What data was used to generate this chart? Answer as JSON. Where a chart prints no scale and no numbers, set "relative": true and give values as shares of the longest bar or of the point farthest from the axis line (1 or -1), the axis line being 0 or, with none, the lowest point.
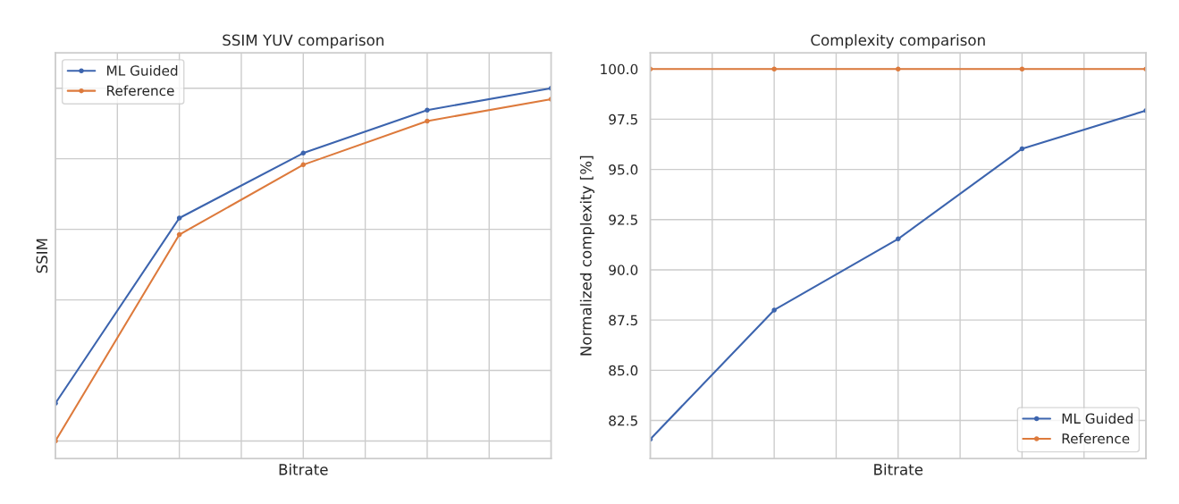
{
  "chart_data": [
    {
      "type": "line",
      "title": "SSIM YUV comparison",
      "xlabel": "Bitrate",
      "ylabel": "SSIM",
      "relative": true,
      "categories": [
        null,
        null,
        null,
        null,
        null
      ],
      "series": [
        {
          "name": "ML Guided",
          "color": "#3c64ae",
          "values": [
            0.107,
            0.632,
            0.816,
            0.938,
            1.0
          ]
        },
        {
          "name": "Reference",
          "color": "#dd7a3c",
          "values": [
            0.0,
            0.585,
            0.783,
            0.907,
            0.969
          ]
        }
      ],
      "marker": "circle",
      "line_style": "solid",
      "grid": true,
      "legend": "top left",
      "tick_labels": false
    },
    {
      "type": "line",
      "title": "Complexity comparison",
      "xlabel": "Bitrate",
      "ylabel": "Normalized complexity [%]",
      "categories": [
        null,
        null,
        null,
        null,
        null
      ],
      "series": [
        {
          "name": "ML Guided",
          "color": "#3c64ae",
          "values": [
            81.57,
            88.0,
            91.54,
            96.03,
            97.93
          ]
        },
        {
          "name": "Reference",
          "color": "#dd7a3c",
          "values": [
            100.0,
            100.0,
            100.0,
            100.0,
            100.0
          ]
        }
      ],
      "ylim": [
        80.6,
        100.8
      ],
      "yticks": [
        {
          "value": 82.5,
          "label": "82.5"
        },
        {
          "value": 85,
          "label": "85.0"
        },
        {
          "value": 87.5,
          "label": "87.5"
        },
        {
          "value": 90,
          "label": "90.0"
        },
        {
          "value": 92.5,
          "label": "92.5"
        },
        {
          "value": 95,
          "label": "95.0"
        },
        {
          "value": 97.5,
          "label": "97.5"
        },
        {
          "value": 100,
          "label": "100.0"
        }
      ],
      "marker": "circle",
      "line_style": "solid",
      "grid": true,
      "legend": "bottom right",
      "tick_labels": "y"
    }
  ]
}
